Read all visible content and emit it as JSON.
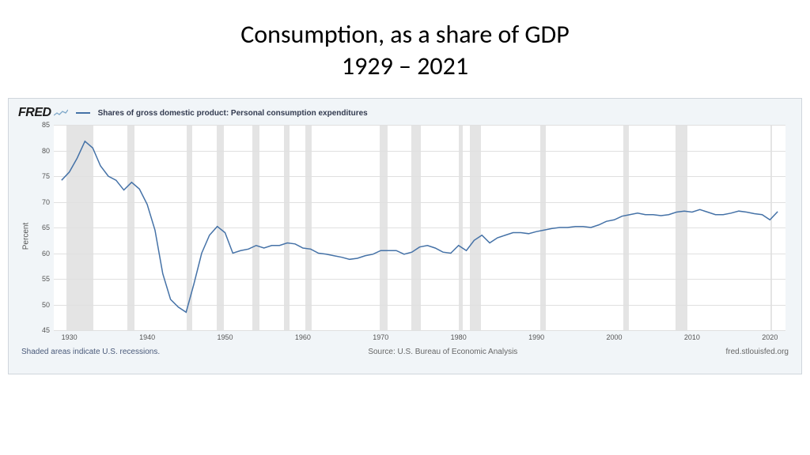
{
  "slide": {
    "title_line1": "Consumption, as a share of GDP",
    "title_line2": "1929 – 2021"
  },
  "chart": {
    "type": "line",
    "brand": "FRED",
    "legend_series_label": "Shares of gross domestic product: Personal consumption expenditures",
    "yaxis_label": "Percent",
    "ylim": [
      45,
      85
    ],
    "ytick_step": 5,
    "yticks": [
      45,
      50,
      55,
      60,
      65,
      70,
      75,
      80,
      85
    ],
    "xlim": [
      1928,
      2022
    ],
    "xticks": [
      1930,
      1940,
      1950,
      1960,
      1970,
      1980,
      1990,
      2000,
      2010,
      2020
    ],
    "background_color": "#ffffff",
    "container_bg": "#f1f5f8",
    "grid_color": "#e0e0e0",
    "line_color": "#4572A7",
    "line_width": 1.5,
    "recession_color": "#e4e4e4",
    "recessions": [
      [
        1929.6,
        1933.1
      ],
      [
        1937.4,
        1938.4
      ],
      [
        1945.1,
        1945.8
      ],
      [
        1948.9,
        1949.8
      ],
      [
        1953.5,
        1954.4
      ],
      [
        1957.6,
        1958.3
      ],
      [
        1960.3,
        1961.1
      ],
      [
        1969.9,
        1970.9
      ],
      [
        1973.9,
        1975.2
      ],
      [
        1980.0,
        1980.5
      ],
      [
        1981.5,
        1982.9
      ],
      [
        1990.5,
        1991.2
      ],
      [
        2001.2,
        2001.9
      ],
      [
        2007.9,
        2009.4
      ],
      [
        2020.1,
        2020.3
      ]
    ],
    "series": {
      "years": [
        1929,
        1930,
        1931,
        1932,
        1933,
        1934,
        1935,
        1936,
        1937,
        1938,
        1939,
        1940,
        1941,
        1942,
        1943,
        1944,
        1945,
        1946,
        1947,
        1948,
        1949,
        1950,
        1951,
        1952,
        1953,
        1954,
        1955,
        1956,
        1957,
        1958,
        1959,
        1960,
        1961,
        1962,
        1963,
        1964,
        1965,
        1966,
        1967,
        1968,
        1969,
        1970,
        1971,
        1972,
        1973,
        1974,
        1975,
        1976,
        1977,
        1978,
        1979,
        1980,
        1981,
        1982,
        1983,
        1984,
        1985,
        1986,
        1987,
        1988,
        1989,
        1990,
        1991,
        1992,
        1993,
        1994,
        1995,
        1996,
        1997,
        1998,
        1999,
        2000,
        2001,
        2002,
        2003,
        2004,
        2005,
        2006,
        2007,
        2008,
        2009,
        2010,
        2011,
        2012,
        2013,
        2014,
        2015,
        2016,
        2017,
        2018,
        2019,
        2020,
        2021
      ],
      "values": [
        74.2,
        75.8,
        78.5,
        81.8,
        80.5,
        77.0,
        75.0,
        74.2,
        72.3,
        73.8,
        72.5,
        69.5,
        64.5,
        56.0,
        51.0,
        49.5,
        48.5,
        54.0,
        60.0,
        63.5,
        65.2,
        64.0,
        60.0,
        60.5,
        60.8,
        61.5,
        61.0,
        61.5,
        61.5,
        62.0,
        61.8,
        61.0,
        60.8,
        60.0,
        59.8,
        59.5,
        59.2,
        58.8,
        59.0,
        59.5,
        59.8,
        60.5,
        60.5,
        60.5,
        59.8,
        60.2,
        61.2,
        61.5,
        61.0,
        60.2,
        60.0,
        61.5,
        60.5,
        62.5,
        63.5,
        62.0,
        63.0,
        63.5,
        64.0,
        64.0,
        63.8,
        64.2,
        64.5,
        64.8,
        65.0,
        65.0,
        65.2,
        65.2,
        65.0,
        65.5,
        66.2,
        66.5,
        67.2,
        67.5,
        67.8,
        67.5,
        67.5,
        67.3,
        67.5,
        68.0,
        68.2,
        68.0,
        68.5,
        68.0,
        67.5,
        67.5,
        67.8,
        68.2,
        68.0,
        67.7,
        67.5,
        66.5,
        68.1
      ]
    },
    "footer_left": "Shaded areas indicate U.S. recessions.",
    "footer_center": "Source: U.S. Bureau of Economic Analysis",
    "footer_right": "fred.stlouisfed.org"
  }
}
